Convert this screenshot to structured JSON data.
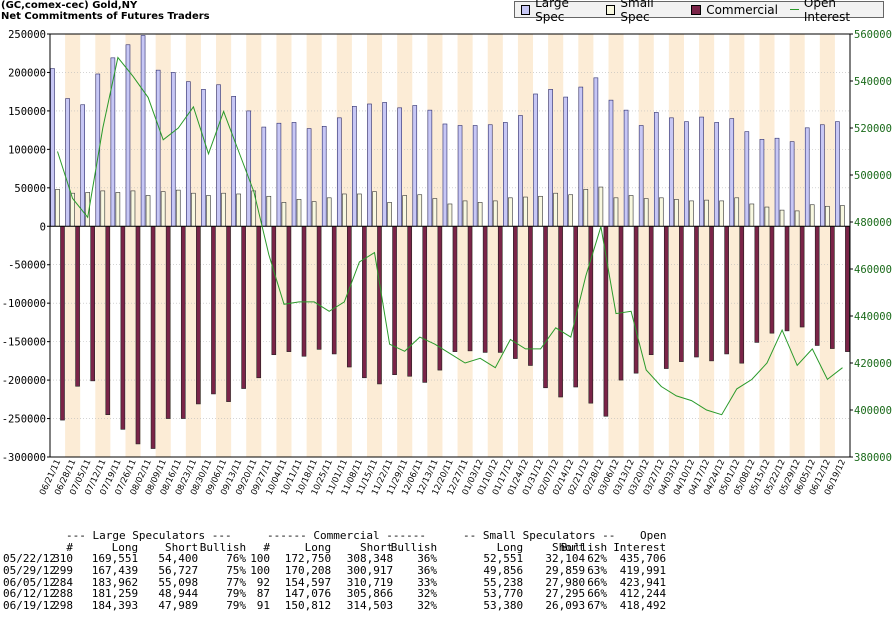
{
  "header": {
    "line1": "(GC,comex-cec) Gold,NY",
    "line2": "Net Commitments of Futures Traders"
  },
  "legend": {
    "items": [
      {
        "name": "Large Spec",
        "color": "#c7c7f5"
      },
      {
        "name": "Small Spec",
        "color": "#f8f8e0"
      },
      {
        "name": "Commercial",
        "color": "#7a2448"
      },
      {
        "name": "Open Interest",
        "color": "#2a9a2a"
      }
    ]
  },
  "chart_data": {
    "type": "bar",
    "title": "",
    "xlabel": "",
    "ylabel": "",
    "ylim": [
      -300000,
      250000
    ],
    "y2lim": [
      380000,
      560000
    ],
    "yticks": [
      "250000",
      "200000",
      "150000",
      "100000",
      "50000",
      "0",
      "-50000",
      "-100000",
      "-150000",
      "-200000",
      "-250000",
      "-300000"
    ],
    "y2ticks": [
      "560000",
      "540000",
      "520000",
      "500000",
      "480000",
      "460000",
      "440000",
      "420000",
      "400000",
      "380000"
    ],
    "categories": [
      "06/21/11",
      "06/28/11",
      "07/05/11",
      "07/12/11",
      "07/19/11",
      "07/26/11",
      "08/02/11",
      "08/09/11",
      "08/16/11",
      "08/23/11",
      "08/30/11",
      "09/06/11",
      "09/13/11",
      "09/20/11",
      "09/27/11",
      "10/04/11",
      "10/11/11",
      "10/18/11",
      "10/25/11",
      "11/01/11",
      "11/08/11",
      "11/15/11",
      "11/22/11",
      "11/29/11",
      "12/06/11",
      "12/13/11",
      "12/20/11",
      "12/27/11",
      "01/03/12",
      "01/10/12",
      "01/17/12",
      "01/24/12",
      "01/31/12",
      "02/07/12",
      "02/14/12",
      "02/21/12",
      "02/28/12",
      "03/06/12",
      "03/13/12",
      "03/20/12",
      "03/27/12",
      "04/03/12",
      "04/10/12",
      "04/17/12",
      "04/24/12",
      "05/01/12",
      "05/08/12",
      "05/15/12",
      "05/22/12",
      "05/29/12",
      "06/05/12",
      "06/12/12",
      "06/19/12"
    ],
    "series": [
      {
        "name": "Large Spec",
        "values": [
          205000,
          166000,
          158000,
          198000,
          219000,
          236000,
          248000,
          203000,
          200000,
          188000,
          178000,
          184000,
          169000,
          150000,
          129000,
          134000,
          135000,
          127000,
          130000,
          141000,
          156000,
          159000,
          161000,
          154000,
          157000,
          151000,
          133000,
          131000,
          131000,
          132000,
          135000,
          144000,
          172000,
          178000,
          168000,
          181000,
          193000,
          164000,
          151000,
          131000,
          148000,
          141000,
          136000,
          142000,
          135000,
          140000,
          123000,
          113000,
          114500,
          110000,
          128000,
          132000,
          136000
        ]
      },
      {
        "name": "Small Spec",
        "values": [
          48000,
          43000,
          44000,
          46000,
          44000,
          46000,
          40000,
          45000,
          47000,
          43000,
          40000,
          43000,
          42000,
          46000,
          39000,
          31000,
          35000,
          32000,
          37000,
          42000,
          42000,
          45000,
          31000,
          40000,
          41000,
          36000,
          29000,
          33000,
          31000,
          33000,
          37000,
          38000,
          39000,
          43000,
          41000,
          48000,
          51000,
          37000,
          40000,
          36000,
          37000,
          35000,
          33000,
          34000,
          33000,
          37000,
          29000,
          25000,
          21000,
          20000,
          28000,
          26000,
          27000
        ]
      },
      {
        "name": "Commercial",
        "values": [
          -252000,
          -208000,
          -201000,
          -245000,
          -264000,
          -283000,
          -289000,
          -250000,
          -250000,
          -231000,
          -218000,
          -228000,
          -211000,
          -197000,
          -167000,
          -163000,
          -169000,
          -160000,
          -166000,
          -183000,
          -197000,
          -205000,
          -193000,
          -195000,
          -203000,
          -187000,
          -163000,
          -162000,
          -164000,
          -164000,
          -172000,
          -181000,
          -210000,
          -222000,
          -209000,
          -230000,
          -247000,
          -200000,
          -191000,
          -167000,
          -185000,
          -176000,
          -170000,
          -175000,
          -166000,
          -178000,
          -151000,
          -139000,
          -136000,
          -131000,
          -155000,
          -159000,
          -163000
        ]
      },
      {
        "name": "Open Interest",
        "values": [
          510000,
          490000,
          482000,
          520000,
          550000,
          542000,
          533000,
          515000,
          520000,
          529000,
          509000,
          527000,
          510000,
          493000,
          466000,
          445000,
          446000,
          446000,
          442000,
          446000,
          463000,
          467000,
          428000,
          425000,
          431000,
          428000,
          424000,
          420000,
          422000,
          418000,
          430000,
          426000,
          426000,
          435000,
          431000,
          457000,
          478000,
          441000,
          442000,
          417000,
          410000,
          406000,
          404000,
          400000,
          398000,
          409000,
          413000,
          420000,
          434000,
          419000,
          426000,
          413000,
          418000
        ]
      }
    ]
  },
  "table": {
    "groups": [
      "--- Large Speculators ---",
      "------ Commercial ------",
      "-- Small Speculators --",
      "Open"
    ],
    "columns": [
      "#",
      "Long",
      "Short",
      "Bullish",
      "#",
      "Long",
      "Short",
      "Bullish",
      "Long",
      "Short",
      "Bullish",
      "Interest"
    ],
    "rows": [
      [
        "05/22/12",
        "310",
        "169,551",
        "54,400",
        "76%",
        "100",
        "172,750",
        "308,348",
        "36%",
        "52,551",
        "32,104",
        "62%",
        "435,706"
      ],
      [
        "05/29/12",
        "299",
        "167,439",
        "56,727",
        "75%",
        "100",
        "170,208",
        "300,917",
        "36%",
        "49,856",
        "29,859",
        "63%",
        "419,991"
      ],
      [
        "06/05/12",
        "284",
        "183,962",
        "55,098",
        "77%",
        "92",
        "154,597",
        "310,719",
        "33%",
        "55,238",
        "27,980",
        "66%",
        "423,941"
      ],
      [
        "06/12/12",
        "288",
        "181,259",
        "48,944",
        "79%",
        "87",
        "147,076",
        "305,866",
        "32%",
        "53,770",
        "27,295",
        "66%",
        "412,244"
      ],
      [
        "06/19/12",
        "298",
        "184,393",
        "47,989",
        "79%",
        "91",
        "150,812",
        "314,503",
        "32%",
        "53,380",
        "26,093",
        "67%",
        "418,492"
      ]
    ]
  }
}
